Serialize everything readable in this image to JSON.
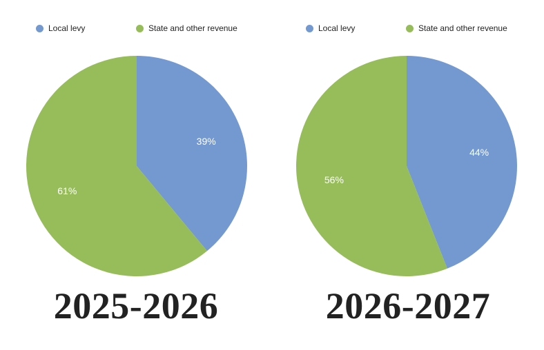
{
  "chart_data": [
    {
      "type": "pie",
      "title": "2025-2026",
      "legend": [
        "Local levy",
        "State and other revenue"
      ],
      "slices": [
        {
          "label": "Local levy",
          "value": 39,
          "display": "39%",
          "color": "#7399d0"
        },
        {
          "label": "State and other revenue",
          "value": 61,
          "display": "61%",
          "color": "#96bd5a"
        }
      ],
      "legend_position": "top"
    },
    {
      "type": "pie",
      "title": "2026-2027",
      "legend": [
        "Local levy",
        "State and other revenue"
      ],
      "slices": [
        {
          "label": "Local levy",
          "value": 44,
          "display": "44%",
          "color": "#7399d0"
        },
        {
          "label": "State and other revenue",
          "value": 56,
          "display": "56%",
          "color": "#96bd5a"
        }
      ],
      "legend_position": "top"
    }
  ]
}
